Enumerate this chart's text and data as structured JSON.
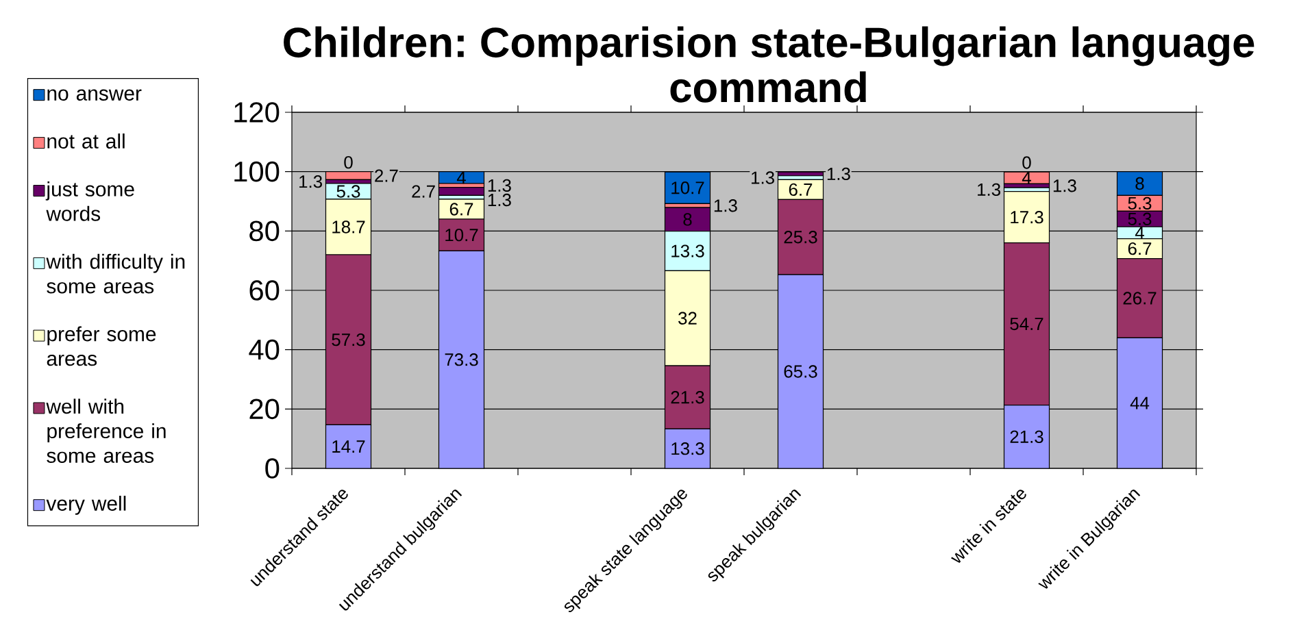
{
  "chart_data": {
    "type": "bar",
    "title": "Children: Comparision state-Bulgarian language command",
    "categories": [
      "understand state",
      "understand bulgarian",
      null,
      "speak state language",
      "speak bulgarian",
      null,
      "write in state",
      "write in Bulgarian"
    ],
    "series": [
      {
        "name": "very well",
        "color": "#9999ff",
        "values": [
          14.7,
          73.3,
          null,
          13.3,
          65.3,
          null,
          21.3,
          44
        ],
        "value_labels": [
          "14.7",
          "73.3",
          null,
          "13.3",
          "65.3",
          null,
          "21.3",
          "44"
        ]
      },
      {
        "name": "well with preference in some areas",
        "color": "#993366",
        "values": [
          57.3,
          10.7,
          null,
          21.3,
          25.3,
          null,
          54.7,
          26.7
        ],
        "value_labels": [
          "57.3",
          "10.7",
          null,
          "21.3",
          "25.3",
          null,
          "54.7",
          "26.7"
        ]
      },
      {
        "name": "prefer some areas",
        "color": "#ffffcc",
        "values": [
          18.7,
          6.7,
          null,
          32,
          6.7,
          null,
          17.3,
          6.7
        ],
        "value_labels": [
          "18.7",
          "6.7",
          null,
          "32",
          "6.7",
          null,
          "17.3",
          "6.7"
        ]
      },
      {
        "name": "with difficulty in some areas",
        "color": "#ccffff",
        "values": [
          5.3,
          1.3,
          null,
          13.3,
          1.3,
          null,
          1.3,
          4
        ],
        "value_labels": [
          "5.3",
          "1.3",
          null,
          "13.3",
          "1.3",
          null,
          "1.3",
          "4"
        ]
      },
      {
        "name": "just some words",
        "color": "#660066",
        "values": [
          1.3,
          2.7,
          null,
          8,
          1.3,
          null,
          1.3,
          5.3
        ],
        "value_labels": [
          "1.3",
          "2.7",
          null,
          "8",
          "1.3",
          null,
          "1.3",
          "5.3"
        ]
      },
      {
        "name": "not at all",
        "color": "#ff8080",
        "values": [
          2.7,
          1.3,
          null,
          1.3,
          0,
          null,
          4,
          5.3
        ],
        "value_labels": [
          "2.7",
          "1.3",
          null,
          "1.3",
          null,
          null,
          "4",
          "5.3"
        ]
      },
      {
        "name": "no answer",
        "color": "#0066cc",
        "values": [
          0,
          4,
          null,
          10.7,
          0,
          null,
          0,
          8
        ],
        "value_labels": [
          "0",
          "4",
          null,
          "10.7",
          null,
          null,
          "0",
          "8"
        ]
      }
    ],
    "stacked": true,
    "ylim": [
      0,
      120
    ],
    "yticks": [
      0,
      20,
      40,
      60,
      80,
      100,
      120
    ],
    "grid": "y",
    "legend": "left"
  }
}
